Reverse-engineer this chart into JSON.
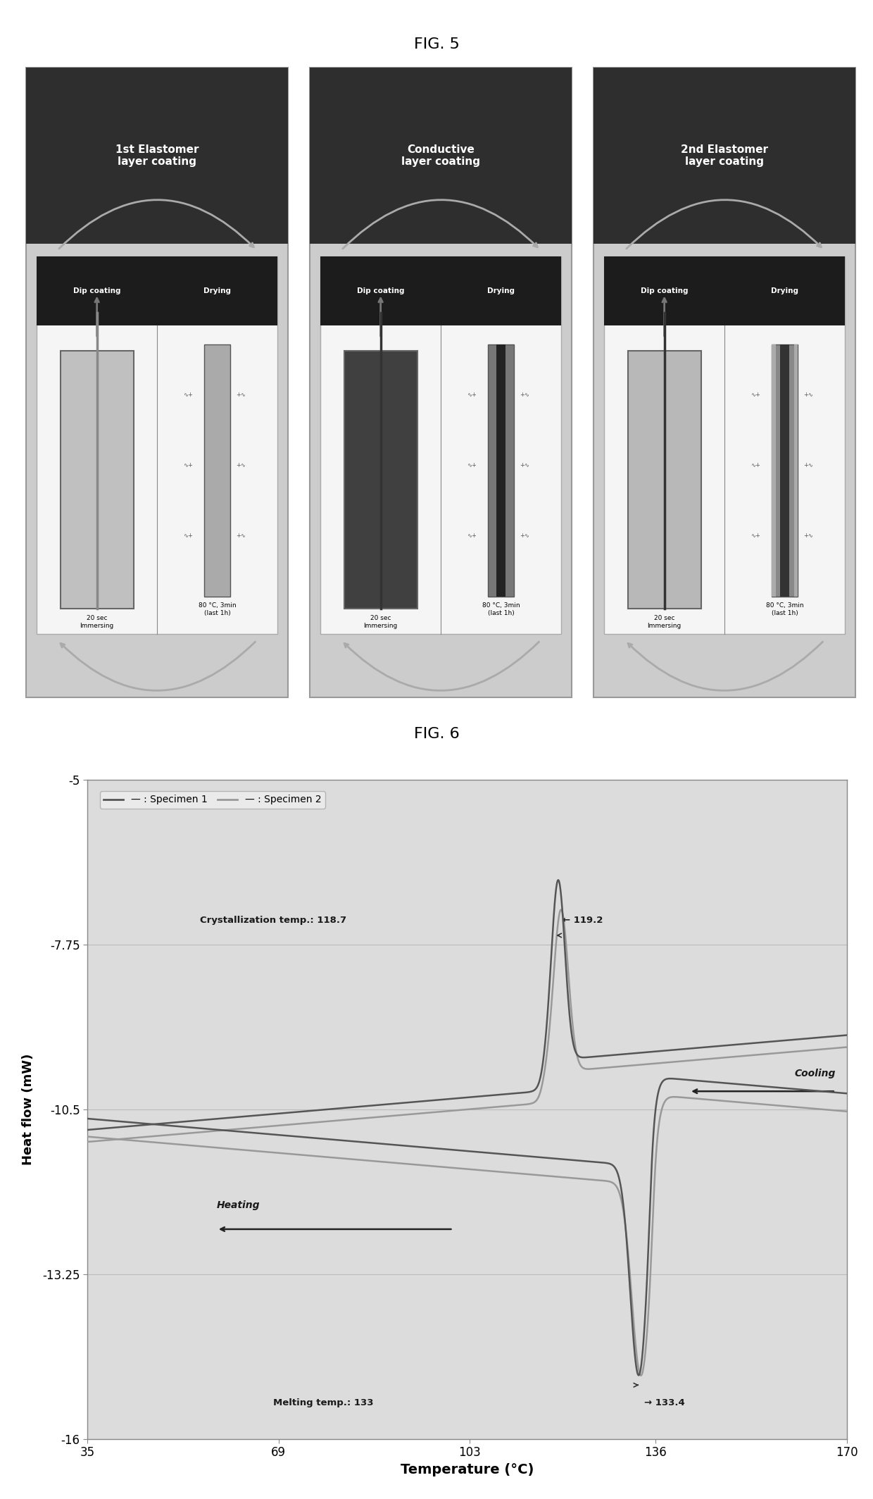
{
  "fig5_title": "FIG. 5",
  "fig6_title": "FIG. 6",
  "panel_titles": [
    "1st Elastomer\nlayer coating",
    "Conductive\nlayer coating",
    "2nd Elastomer\nlayer coating"
  ],
  "immerse_texts": [
    "20 sec\nImmersing",
    "20 sec\nImmersing",
    "20 sec\nImmersing"
  ],
  "drying_texts": [
    "80 °C, 3min\n(last 1h)",
    "80 °C, 3min\n(last 1h)",
    "80 °C, 3min\n(last 1h)"
  ],
  "plot_xlabel": "Temperature (°C)",
  "plot_ylabel": "Heat flow (mW)",
  "x_ticks": [
    35,
    69,
    103,
    136,
    170
  ],
  "y_ticks": [
    -5,
    -7.75,
    -10.5,
    -13.25,
    -16
  ],
  "xlim": [
    35,
    170
  ],
  "ylim": [
    -16,
    -5
  ],
  "spec1_color": "#555555",
  "spec2_color": "#999999",
  "bg_color": "#dcdcdc",
  "crystallization_label": "Crystallization temp.: 118.7",
  "crystallization_label2": "← 119.2",
  "melting_label": "Melting temp.: 133",
  "melting_label2": "→ 133.4",
  "cooling_text": "Cooling",
  "heating_text": "Heating"
}
